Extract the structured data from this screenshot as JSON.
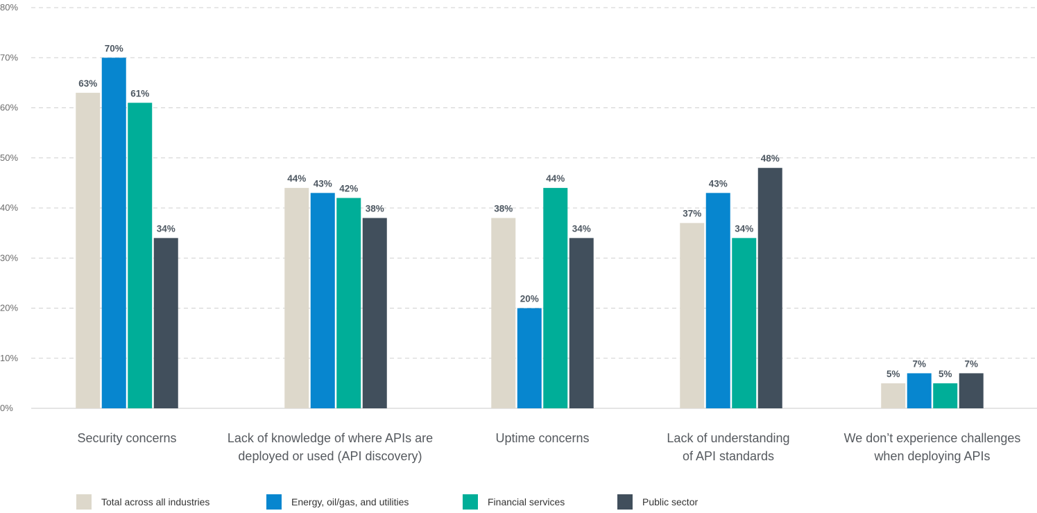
{
  "chart_data": {
    "type": "bar",
    "title": "",
    "xlabel": "",
    "ylabel": "",
    "ylim": [
      0,
      80
    ],
    "yticks": [
      "0%",
      "10%",
      "20%",
      "30%",
      "40%",
      "50%",
      "60%",
      "70%",
      "80%"
    ],
    "grid": "horizontal dashed",
    "legend_position": "bottom",
    "categories": [
      [
        "Security concerns"
      ],
      [
        "Lack of knowledge of where APIs are",
        "deployed or used (API discovery)"
      ],
      [
        "Uptime concerns"
      ],
      [
        "Lack of understanding",
        "of API standards"
      ],
      [
        "We don’t experience challenges",
        "when deploying APIs"
      ]
    ],
    "series": [
      {
        "name": "Total across all industries",
        "color": "#ddd8cb",
        "values": [
          63,
          44,
          38,
          37,
          5
        ],
        "labels": [
          "63%",
          "44%",
          "38%",
          "37%",
          "5%"
        ]
      },
      {
        "name": "Energy, oil/gas, and utilities",
        "color": "#0786cf",
        "values": [
          70,
          43,
          20,
          43,
          7
        ],
        "labels": [
          "70%",
          "43%",
          "20%",
          "43%",
          "7%"
        ]
      },
      {
        "name": "Financial services",
        "color": "#00ae98",
        "values": [
          61,
          42,
          44,
          34,
          5
        ],
        "labels": [
          "61%",
          "42%",
          "44%",
          "34%",
          "5%"
        ]
      },
      {
        "name": "Public sector",
        "color": "#414f5c",
        "values": [
          34,
          38,
          34,
          48,
          7
        ],
        "labels": [
          "34%",
          "38%",
          "34%",
          "48%",
          "7%"
        ]
      }
    ]
  }
}
